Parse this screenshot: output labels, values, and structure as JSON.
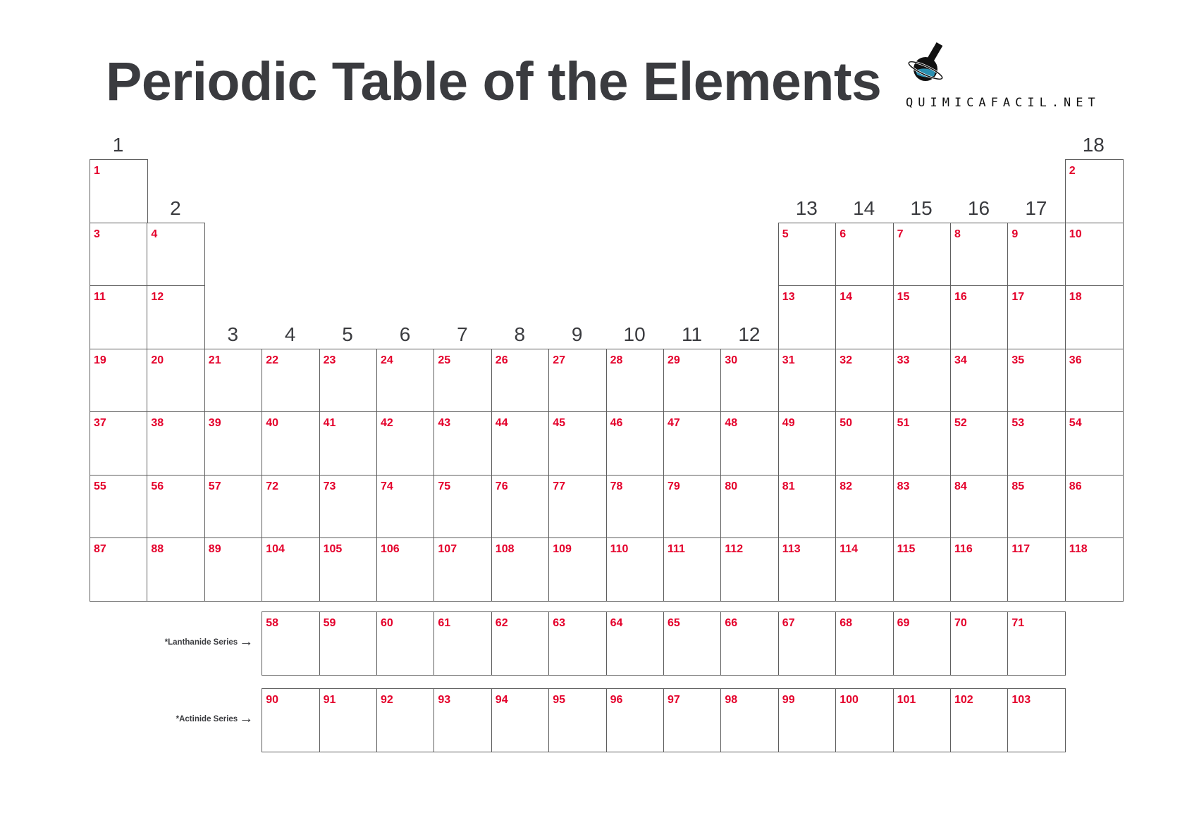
{
  "title": "Periodic Table of the Elements",
  "logo": {
    "text": "QUIMICAFACIL.NET",
    "icon": "flask-planet-icon"
  },
  "colors": {
    "number": "#e4002b",
    "text": "#3a3b3f",
    "border": "#5e5e5e"
  },
  "groups": [
    "1",
    "2",
    "3",
    "4",
    "5",
    "6",
    "7",
    "8",
    "9",
    "10",
    "11",
    "12",
    "13",
    "14",
    "15",
    "16",
    "17",
    "18"
  ],
  "periods": [
    [
      1,
      null,
      null,
      null,
      null,
      null,
      null,
      null,
      null,
      null,
      null,
      null,
      null,
      null,
      null,
      null,
      null,
      2
    ],
    [
      3,
      4,
      null,
      null,
      null,
      null,
      null,
      null,
      null,
      null,
      null,
      null,
      5,
      6,
      7,
      8,
      9,
      10
    ],
    [
      11,
      12,
      null,
      null,
      null,
      null,
      null,
      null,
      null,
      null,
      null,
      null,
      13,
      14,
      15,
      16,
      17,
      18
    ],
    [
      19,
      20,
      21,
      22,
      23,
      24,
      25,
      26,
      27,
      28,
      29,
      30,
      31,
      32,
      33,
      34,
      35,
      36
    ],
    [
      37,
      38,
      39,
      40,
      41,
      42,
      43,
      44,
      45,
      46,
      47,
      48,
      49,
      50,
      51,
      52,
      53,
      54
    ],
    [
      55,
      56,
      57,
      72,
      73,
      74,
      75,
      76,
      77,
      78,
      79,
      80,
      81,
      82,
      83,
      84,
      85,
      86
    ],
    [
      87,
      88,
      89,
      104,
      105,
      106,
      107,
      108,
      109,
      110,
      111,
      112,
      113,
      114,
      115,
      116,
      117,
      118
    ]
  ],
  "series": [
    {
      "label": "*Lanthanide Series",
      "arrow": "arrow-right-icon",
      "numbers": [
        58,
        59,
        60,
        61,
        62,
        63,
        64,
        65,
        66,
        67,
        68,
        69,
        70,
        71
      ]
    },
    {
      "label": "*Actinide Series",
      "arrow": "arrow-right-icon",
      "numbers": [
        90,
        91,
        92,
        93,
        94,
        95,
        96,
        97,
        98,
        99,
        100,
        101,
        102,
        103
      ]
    }
  ]
}
